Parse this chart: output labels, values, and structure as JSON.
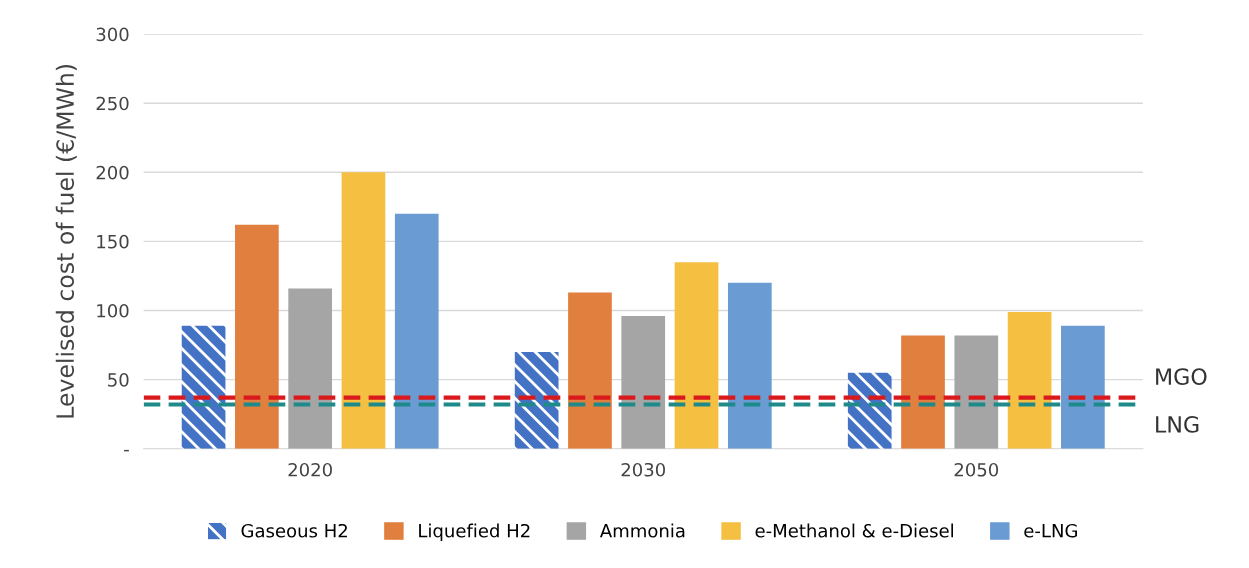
{
  "chart_data": {
    "type": "bar",
    "ylabel": "Levelised cost of fuel (€/MWh)",
    "categories": [
      "2020",
      "2030",
      "2050"
    ],
    "series": [
      {
        "name": "Gaseous H2",
        "color": "#4472c4",
        "values": [
          89,
          70,
          55
        ]
      },
      {
        "name": "Liquefied H2",
        "color": "#e07f3e",
        "values": [
          162,
          113,
          82
        ]
      },
      {
        "name": "Ammonia",
        "color": "#a5a5a5",
        "values": [
          116,
          96,
          82
        ]
      },
      {
        "name": "e-Methanol & e-Diesel",
        "color": "#f5bf42",
        "values": [
          200,
          135,
          99
        ]
      },
      {
        "name": "e-LNG",
        "color": "#6a9bd3",
        "values": [
          170,
          120,
          89
        ]
      }
    ],
    "ylim": [
      0,
      300
    ],
    "yticks": [
      {
        "value": 0,
        "label": "-"
      },
      50,
      100,
      150,
      200,
      250,
      300
    ],
    "ref_lines": [
      {
        "axis": "y",
        "value": 37,
        "label": "MGO",
        "color": "#d9191c",
        "line_style": "dashed"
      },
      {
        "axis": "y",
        "value": 32,
        "label": "LNG",
        "color": "#1f8a8a",
        "line_style": "dashed"
      }
    ],
    "grid": "y",
    "legend": "bottom"
  }
}
